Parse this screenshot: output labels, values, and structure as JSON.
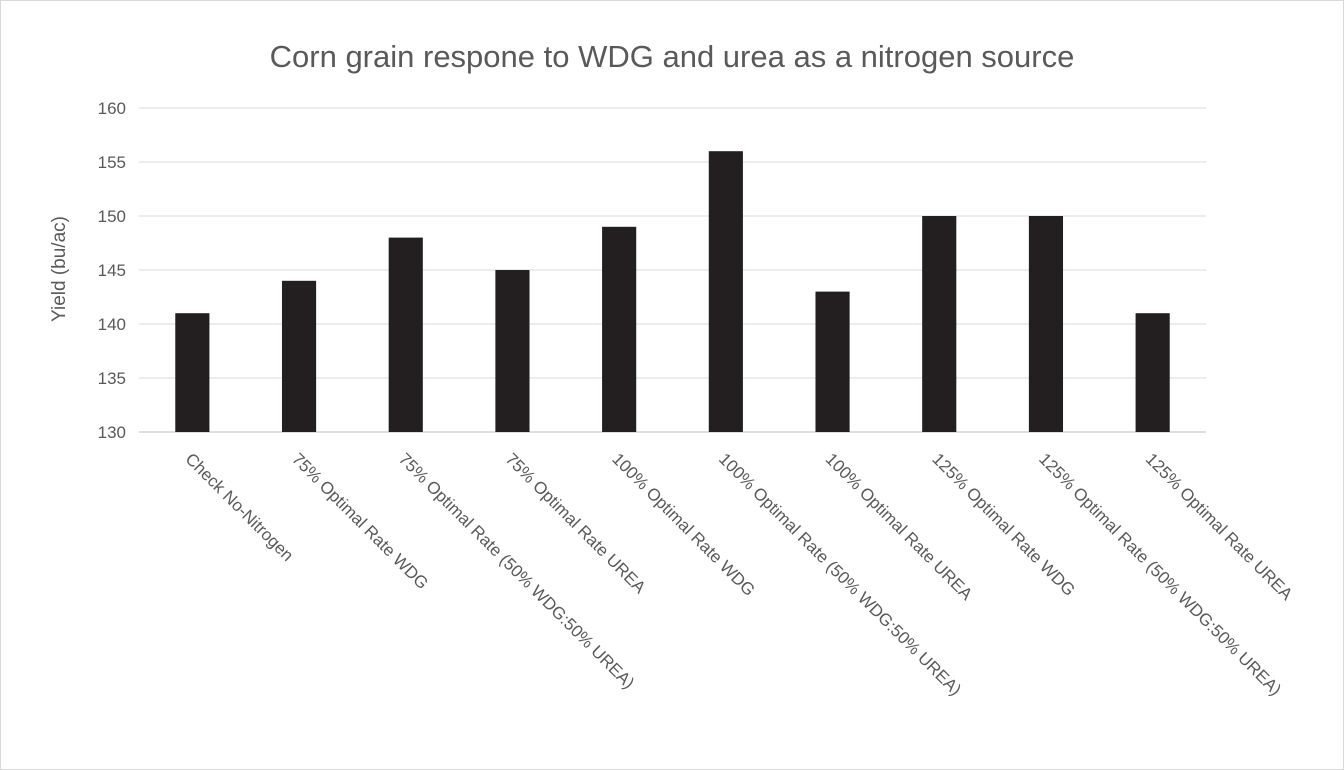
{
  "chart_data": {
    "type": "bar",
    "title": "Corn grain respone to WDG and urea as a nitrogen source",
    "xlabel": "",
    "ylabel": "Yield (bu/ac)",
    "ylim": [
      130,
      160
    ],
    "yticks": [
      130,
      135,
      140,
      145,
      150,
      155,
      160
    ],
    "grid": true,
    "legend": "none",
    "categories": [
      "Check No-Nitrogen",
      "75% Optimal Rate WDG",
      "75% Optimal Rate (50% WDG:50% UREA)",
      "75% Optimal Rate UREA",
      "100% Optimal Rate WDG",
      "100% Optimal Rate (50% WDG:50% UREA)",
      "100% Optimal Rate UREA",
      "125% Optimal Rate WDG",
      "125% Optimal Rate (50% WDG:50% UREA)",
      "125% Optimal Rate UREA"
    ],
    "values": [
      141,
      144,
      148,
      145,
      149,
      156,
      143,
      150,
      150,
      141
    ],
    "colors": {
      "bar": "#231f20",
      "grid": "#d9d9d9",
      "text": "#595959"
    }
  }
}
